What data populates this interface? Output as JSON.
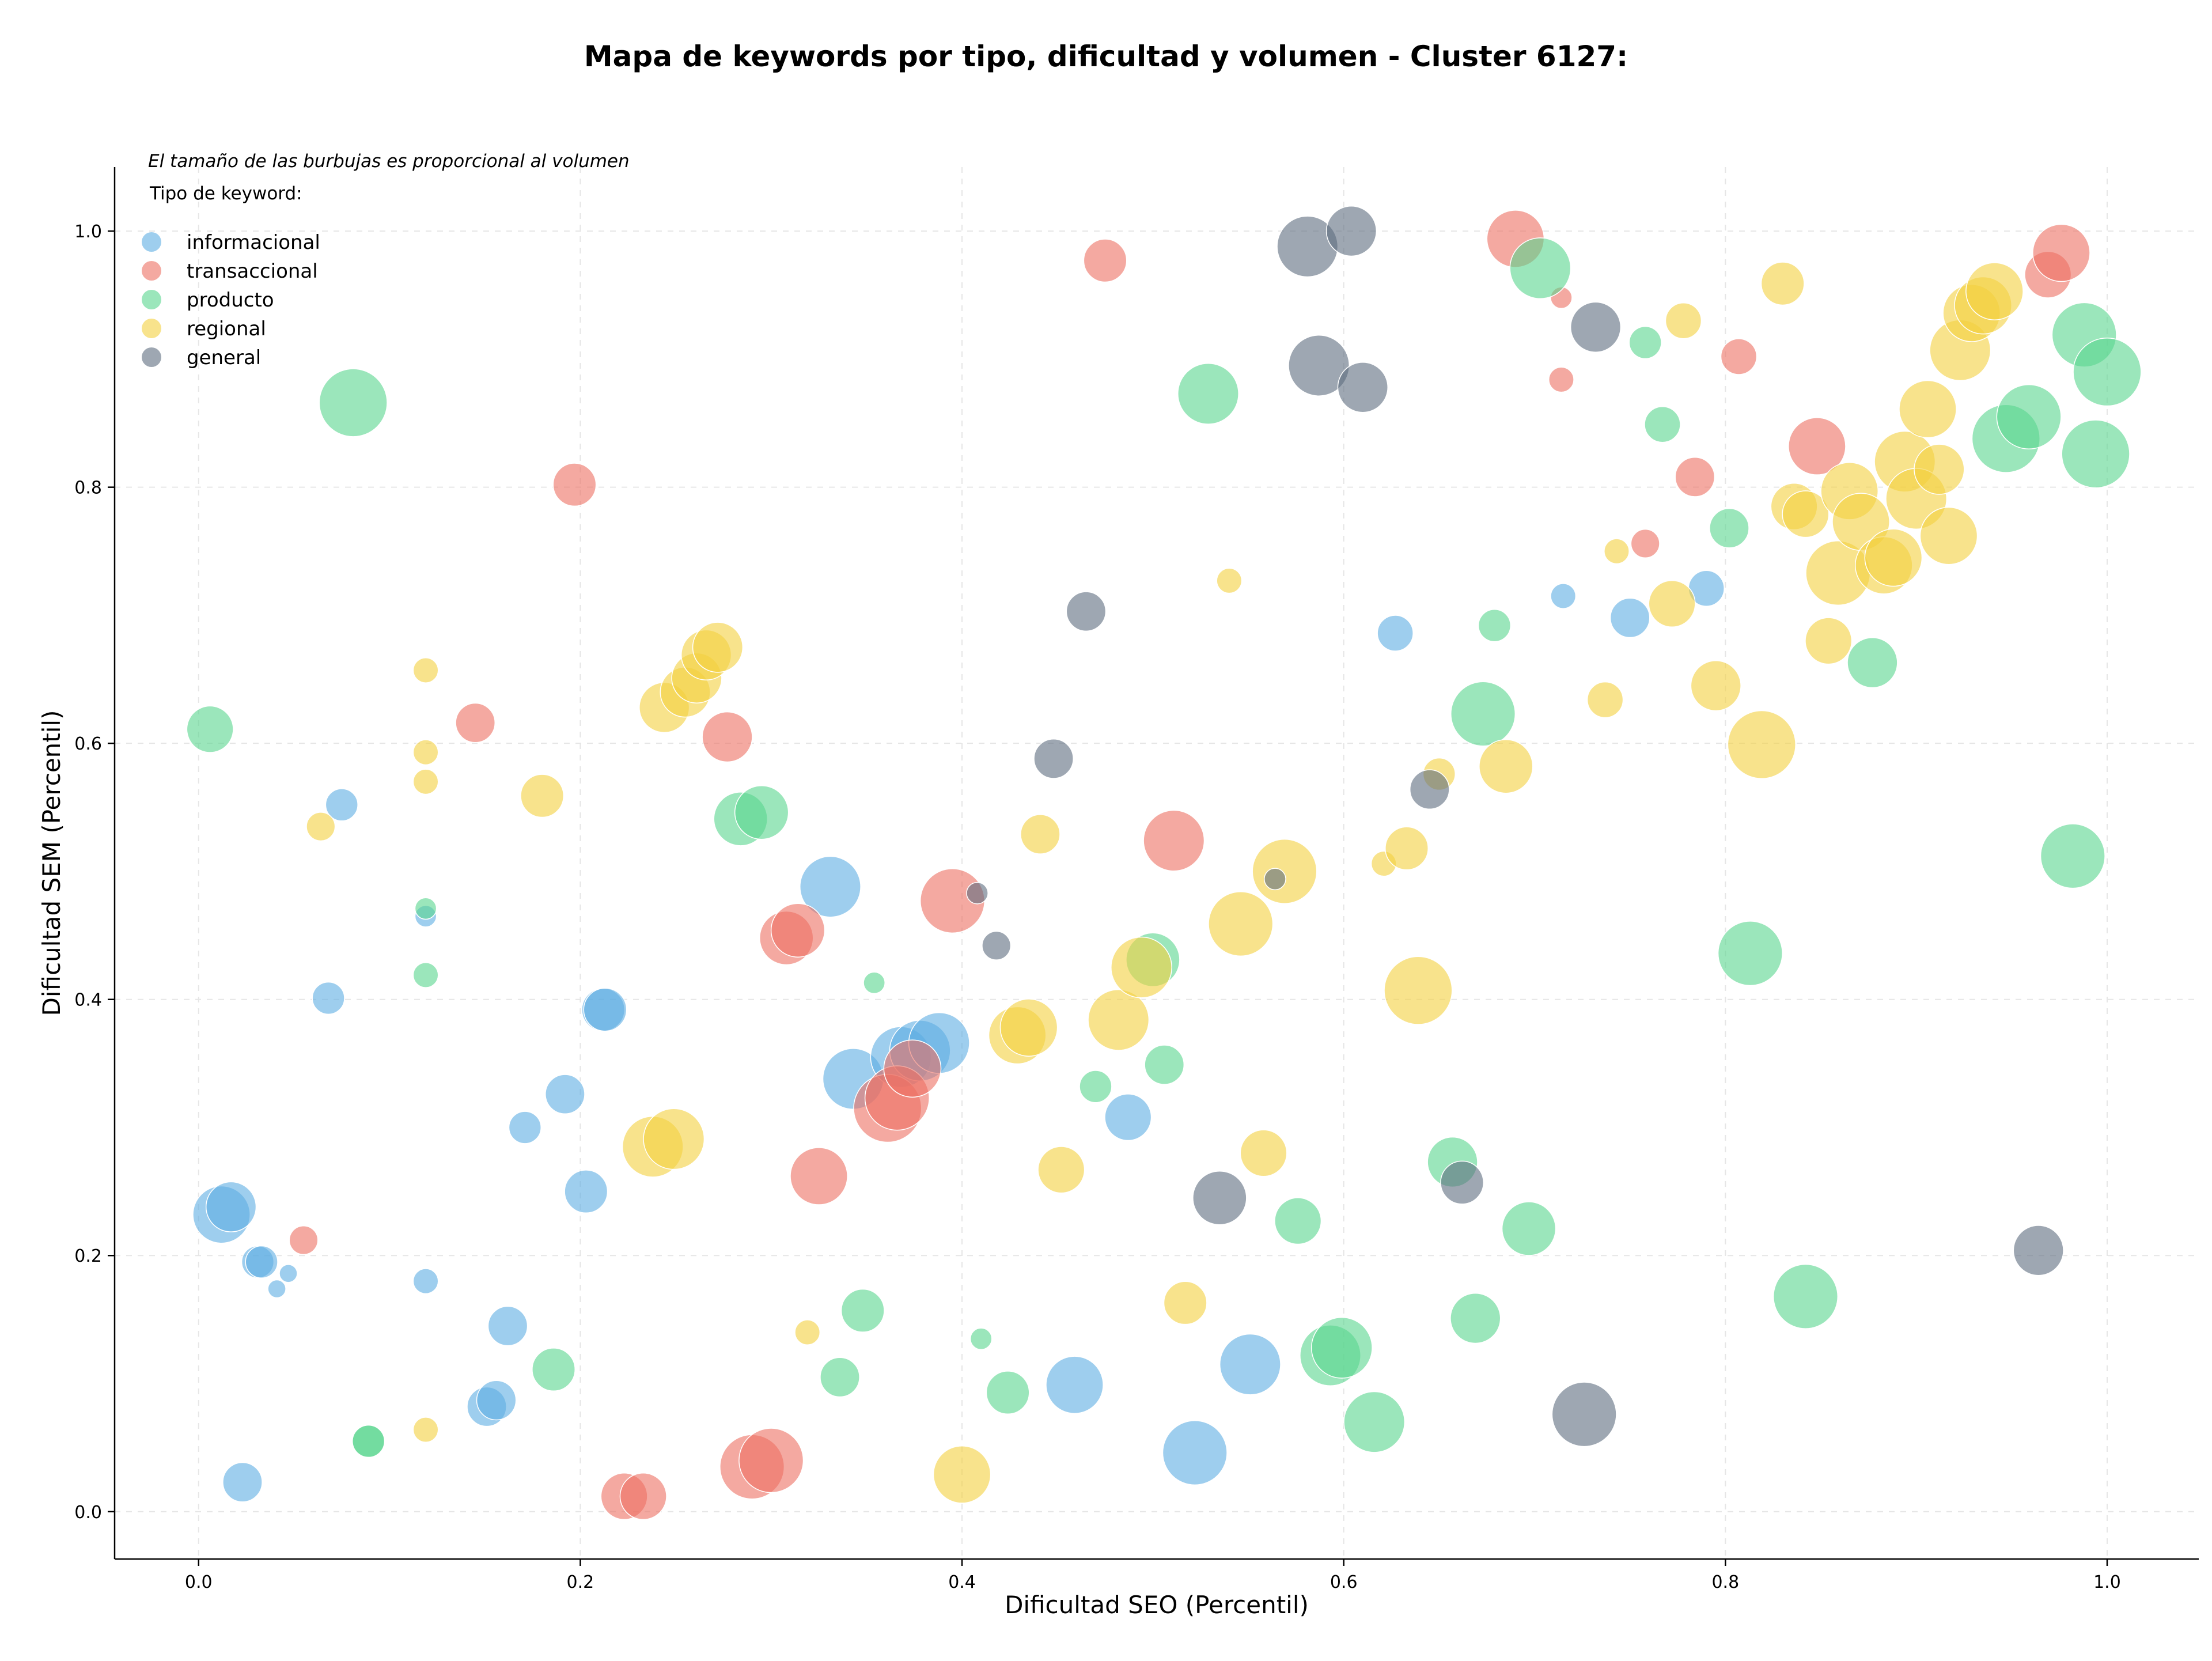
{
  "chart_data": {
    "type": "scatter",
    "title": "Mapa de keywords por tipo, dificultad y volumen - Cluster 6127:",
    "xlabel": "Dificultad SEO (Percentil)",
    "ylabel": "Dificultad SEM (Percentil)",
    "note": "El tamaño de las burbujas es proporcional al volumen",
    "legend_title": "Tipo de keyword:",
    "legend_position": "top-left",
    "grid": true,
    "xlim": [
      -0.044,
      1.048
    ],
    "ylim": [
      -0.037,
      1.05
    ],
    "x_ticks": [
      "0.0",
      "0.2",
      "0.4",
      "0.6",
      "0.8",
      "1.0"
    ],
    "y_ticks": [
      "0.0",
      "0.2",
      "0.4",
      "0.6",
      "0.8",
      "1.0"
    ],
    "series": [
      {
        "name": "informacional",
        "color": "#5dade2",
        "points": [
          {
            "x": 0.012,
            "y": 0.232,
            "r": 16
          },
          {
            "x": 0.017,
            "y": 0.238,
            "r": 14
          },
          {
            "x": 0.031,
            "y": 0.195,
            "r": 9
          },
          {
            "x": 0.033,
            "y": 0.195,
            "r": 9
          },
          {
            "x": 0.041,
            "y": 0.174,
            "r": 5
          },
          {
            "x": 0.047,
            "y": 0.186,
            "r": 5
          },
          {
            "x": 0.023,
            "y": 0.023,
            "r": 11
          },
          {
            "x": 0.068,
            "y": 0.401,
            "r": 9
          },
          {
            "x": 0.075,
            "y": 0.552,
            "r": 9
          },
          {
            "x": 0.119,
            "y": 0.465,
            "r": 6
          },
          {
            "x": 0.119,
            "y": 0.18,
            "r": 7
          },
          {
            "x": 0.151,
            "y": 0.082,
            "r": 11
          },
          {
            "x": 0.156,
            "y": 0.087,
            "r": 11
          },
          {
            "x": 0.162,
            "y": 0.145,
            "r": 11
          },
          {
            "x": 0.171,
            "y": 0.3,
            "r": 9
          },
          {
            "x": 0.192,
            "y": 0.326,
            "r": 11
          },
          {
            "x": 0.203,
            "y": 0.25,
            "r": 12
          },
          {
            "x": 0.212,
            "y": 0.392,
            "r": 12
          },
          {
            "x": 0.213,
            "y": 0.392,
            "r": 12
          },
          {
            "x": 0.331,
            "y": 0.488,
            "r": 17
          },
          {
            "x": 0.343,
            "y": 0.338,
            "r": 17
          },
          {
            "x": 0.368,
            "y": 0.355,
            "r": 17
          },
          {
            "x": 0.378,
            "y": 0.36,
            "r": 17
          },
          {
            "x": 0.388,
            "y": 0.366,
            "r": 17
          },
          {
            "x": 0.459,
            "y": 0.099,
            "r": 16
          },
          {
            "x": 0.487,
            "y": 0.308,
            "r": 13
          },
          {
            "x": 0.522,
            "y": 0.046,
            "r": 18
          },
          {
            "x": 0.551,
            "y": 0.115,
            "r": 17
          },
          {
            "x": 0.627,
            "y": 0.686,
            "r": 10
          },
          {
            "x": 0.715,
            "y": 0.715,
            "r": 7
          },
          {
            "x": 0.75,
            "y": 0.698,
            "r": 11
          },
          {
            "x": 0.79,
            "y": 0.721,
            "r": 10
          }
        ]
      },
      {
        "name": "transaccional",
        "color": "#ec7063",
        "points": [
          {
            "x": 0.055,
            "y": 0.212,
            "r": 8
          },
          {
            "x": 0.145,
            "y": 0.616,
            "r": 11
          },
          {
            "x": 0.197,
            "y": 0.802,
            "r": 12
          },
          {
            "x": 0.223,
            "y": 0.012,
            "r": 13
          },
          {
            "x": 0.233,
            "y": 0.012,
            "r": 13
          },
          {
            "x": 0.277,
            "y": 0.605,
            "r": 14
          },
          {
            "x": 0.29,
            "y": 0.035,
            "r": 18
          },
          {
            "x": 0.3,
            "y": 0.04,
            "r": 18
          },
          {
            "x": 0.308,
            "y": 0.448,
            "r": 15
          },
          {
            "x": 0.314,
            "y": 0.454,
            "r": 15
          },
          {
            "x": 0.325,
            "y": 0.262,
            "r": 16
          },
          {
            "x": 0.361,
            "y": 0.315,
            "r": 19
          },
          {
            "x": 0.366,
            "y": 0.323,
            "r": 18
          },
          {
            "x": 0.374,
            "y": 0.346,
            "r": 16
          },
          {
            "x": 0.395,
            "y": 0.477,
            "r": 18
          },
          {
            "x": 0.475,
            "y": 0.977,
            "r": 12
          },
          {
            "x": 0.511,
            "y": 0.524,
            "r": 17
          },
          {
            "x": 0.69,
            "y": 0.994,
            "r": 16
          },
          {
            "x": 0.714,
            "y": 0.948,
            "r": 6
          },
          {
            "x": 0.714,
            "y": 0.884,
            "r": 7
          },
          {
            "x": 0.758,
            "y": 0.756,
            "r": 8
          },
          {
            "x": 0.784,
            "y": 0.808,
            "r": 11
          },
          {
            "x": 0.807,
            "y": 0.902,
            "r": 10
          },
          {
            "x": 0.848,
            "y": 0.832,
            "r": 16
          },
          {
            "x": 0.969,
            "y": 0.966,
            "r": 13
          },
          {
            "x": 0.976,
            "y": 0.983,
            "r": 16
          }
        ]
      },
      {
        "name": "producto",
        "color": "#58d68d",
        "points": [
          {
            "x": 0.006,
            "y": 0.611,
            "r": 13
          },
          {
            "x": 0.081,
            "y": 0.866,
            "r": 19
          },
          {
            "x": 0.089,
            "y": 0.055,
            "r": 9
          },
          {
            "x": 0.089,
            "y": 0.055,
            "r": 9
          },
          {
            "x": 0.119,
            "y": 0.471,
            "r": 6
          },
          {
            "x": 0.119,
            "y": 0.419,
            "r": 7
          },
          {
            "x": 0.186,
            "y": 0.111,
            "r": 12
          },
          {
            "x": 0.284,
            "y": 0.541,
            "r": 15
          },
          {
            "x": 0.295,
            "y": 0.546,
            "r": 15
          },
          {
            "x": 0.336,
            "y": 0.105,
            "r": 11
          },
          {
            "x": 0.348,
            "y": 0.157,
            "r": 12
          },
          {
            "x": 0.354,
            "y": 0.413,
            "r": 6
          },
          {
            "x": 0.41,
            "y": 0.135,
            "r": 6
          },
          {
            "x": 0.424,
            "y": 0.093,
            "r": 12
          },
          {
            "x": 0.47,
            "y": 0.332,
            "r": 9
          },
          {
            "x": 0.5,
            "y": 0.431,
            "r": 15
          },
          {
            "x": 0.506,
            "y": 0.349,
            "r": 11
          },
          {
            "x": 0.529,
            "y": 0.873,
            "r": 17
          },
          {
            "x": 0.576,
            "y": 0.227,
            "r": 13
          },
          {
            "x": 0.593,
            "y": 0.122,
            "r": 17
          },
          {
            "x": 0.599,
            "y": 0.128,
            "r": 17
          },
          {
            "x": 0.616,
            "y": 0.07,
            "r": 17
          },
          {
            "x": 0.657,
            "y": 0.273,
            "r": 14
          },
          {
            "x": 0.669,
            "y": 0.151,
            "r": 14
          },
          {
            "x": 0.673,
            "y": 0.623,
            "r": 18
          },
          {
            "x": 0.679,
            "y": 0.692,
            "r": 9
          },
          {
            "x": 0.697,
            "y": 0.221,
            "r": 15
          },
          {
            "x": 0.703,
            "y": 0.971,
            "r": 17
          },
          {
            "x": 0.758,
            "y": 0.913,
            "r": 9
          },
          {
            "x": 0.767,
            "y": 0.849,
            "r": 10
          },
          {
            "x": 0.802,
            "y": 0.768,
            "r": 11
          },
          {
            "x": 0.813,
            "y": 0.436,
            "r": 18
          },
          {
            "x": 0.842,
            "y": 0.168,
            "r": 18
          },
          {
            "x": 0.877,
            "y": 0.663,
            "r": 14
          },
          {
            "x": 0.947,
            "y": 0.838,
            "r": 19
          },
          {
            "x": 0.959,
            "y": 0.855,
            "r": 18
          },
          {
            "x": 0.982,
            "y": 0.512,
            "r": 18
          },
          {
            "x": 0.988,
            "y": 0.919,
            "r": 18
          },
          {
            "x": 0.994,
            "y": 0.826,
            "r": 19
          },
          {
            "x": 1.0,
            "y": 0.89,
            "r": 19
          }
        ]
      },
      {
        "name": "regional",
        "color": "#f4d03f",
        "points": [
          {
            "x": 0.064,
            "y": 0.535,
            "r": 8
          },
          {
            "x": 0.119,
            "y": 0.657,
            "r": 7
          },
          {
            "x": 0.119,
            "y": 0.593,
            "r": 7
          },
          {
            "x": 0.119,
            "y": 0.57,
            "r": 7
          },
          {
            "x": 0.119,
            "y": 0.064,
            "r": 7
          },
          {
            "x": 0.18,
            "y": 0.559,
            "r": 12
          },
          {
            "x": 0.238,
            "y": 0.285,
            "r": 17
          },
          {
            "x": 0.249,
            "y": 0.291,
            "r": 17
          },
          {
            "x": 0.244,
            "y": 0.628,
            "r": 14
          },
          {
            "x": 0.255,
            "y": 0.64,
            "r": 14
          },
          {
            "x": 0.261,
            "y": 0.651,
            "r": 14
          },
          {
            "x": 0.266,
            "y": 0.669,
            "r": 14
          },
          {
            "x": 0.272,
            "y": 0.675,
            "r": 14
          },
          {
            "x": 0.319,
            "y": 0.14,
            "r": 7
          },
          {
            "x": 0.4,
            "y": 0.029,
            "r": 16
          },
          {
            "x": 0.429,
            "y": 0.372,
            "r": 16
          },
          {
            "x": 0.435,
            "y": 0.378,
            "r": 16
          },
          {
            "x": 0.441,
            "y": 0.529,
            "r": 11
          },
          {
            "x": 0.452,
            "y": 0.267,
            "r": 13
          },
          {
            "x": 0.482,
            "y": 0.384,
            "r": 17
          },
          {
            "x": 0.494,
            "y": 0.425,
            "r": 17
          },
          {
            "x": 0.517,
            "y": 0.163,
            "r": 12
          },
          {
            "x": 0.54,
            "y": 0.727,
            "r": 7
          },
          {
            "x": 0.546,
            "y": 0.459,
            "r": 18
          },
          {
            "x": 0.558,
            "y": 0.28,
            "r": 13
          },
          {
            "x": 0.569,
            "y": 0.5,
            "r": 18
          },
          {
            "x": 0.621,
            "y": 0.506,
            "r": 7
          },
          {
            "x": 0.633,
            "y": 0.518,
            "r": 12
          },
          {
            "x": 0.639,
            "y": 0.407,
            "r": 19
          },
          {
            "x": 0.65,
            "y": 0.576,
            "r": 9
          },
          {
            "x": 0.685,
            "y": 0.582,
            "r": 15
          },
          {
            "x": 0.737,
            "y": 0.634,
            "r": 10
          },
          {
            "x": 0.743,
            "y": 0.75,
            "r": 7
          },
          {
            "x": 0.772,
            "y": 0.709,
            "r": 13
          },
          {
            "x": 0.778,
            "y": 0.93,
            "r": 10
          },
          {
            "x": 0.795,
            "y": 0.645,
            "r": 14
          },
          {
            "x": 0.819,
            "y": 0.599,
            "r": 19
          },
          {
            "x": 0.83,
            "y": 0.959,
            "r": 12
          },
          {
            "x": 0.836,
            "y": 0.785,
            "r": 13
          },
          {
            "x": 0.842,
            "y": 0.779,
            "r": 13
          },
          {
            "x": 0.854,
            "y": 0.68,
            "r": 13
          },
          {
            "x": 0.859,
            "y": 0.733,
            "r": 18
          },
          {
            "x": 0.865,
            "y": 0.797,
            "r": 16
          },
          {
            "x": 0.871,
            "y": 0.773,
            "r": 16
          },
          {
            "x": 0.883,
            "y": 0.739,
            "r": 16
          },
          {
            "x": 0.888,
            "y": 0.745,
            "r": 16
          },
          {
            "x": 0.894,
            "y": 0.82,
            "r": 17
          },
          {
            "x": 0.9,
            "y": 0.791,
            "r": 17
          },
          {
            "x": 0.906,
            "y": 0.861,
            "r": 16
          },
          {
            "x": 0.912,
            "y": 0.814,
            "r": 14
          },
          {
            "x": 0.917,
            "y": 0.762,
            "r": 16
          },
          {
            "x": 0.923,
            "y": 0.907,
            "r": 17
          },
          {
            "x": 0.929,
            "y": 0.936,
            "r": 16
          },
          {
            "x": 0.935,
            "y": 0.942,
            "r": 16
          },
          {
            "x": 0.941,
            "y": 0.953,
            "r": 16
          }
        ]
      },
      {
        "name": "general",
        "color": "#5d6d7e",
        "points": [
          {
            "x": 0.408,
            "y": 0.483,
            "r": 6
          },
          {
            "x": 0.418,
            "y": 0.442,
            "r": 8
          },
          {
            "x": 0.448,
            "y": 0.588,
            "r": 11
          },
          {
            "x": 0.465,
            "y": 0.703,
            "r": 11
          },
          {
            "x": 0.535,
            "y": 0.245,
            "r": 15
          },
          {
            "x": 0.564,
            "y": 0.494,
            "r": 6
          },
          {
            "x": 0.581,
            "y": 0.988,
            "r": 17
          },
          {
            "x": 0.587,
            "y": 0.895,
            "r": 17
          },
          {
            "x": 0.604,
            "y": 1.0,
            "r": 14
          },
          {
            "x": 0.61,
            "y": 0.878,
            "r": 14
          },
          {
            "x": 0.645,
            "y": 0.564,
            "r": 11
          },
          {
            "x": 0.662,
            "y": 0.257,
            "r": 12
          },
          {
            "x": 0.726,
            "y": 0.076,
            "r": 18
          },
          {
            "x": 0.732,
            "y": 0.925,
            "r": 14
          },
          {
            "x": 0.964,
            "y": 0.204,
            "r": 14
          }
        ]
      }
    ]
  }
}
